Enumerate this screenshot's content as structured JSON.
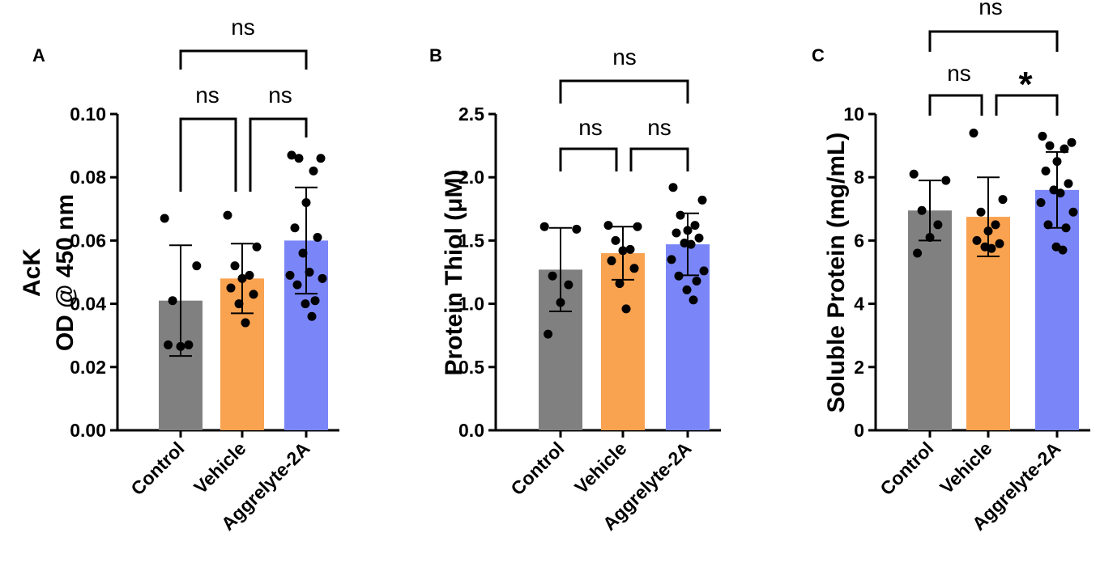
{
  "chart_data": [
    {
      "type": "bar",
      "panel": "A",
      "categories": [
        "Control",
        "Vehicle",
        "Aggrelyte-2A"
      ],
      "ylabel_lines": [
        "AcK",
        "OD @ 450 nm"
      ],
      "ylim": [
        0,
        0.1
      ],
      "yticks": [
        "0.00",
        "0.02",
        "0.04",
        "0.06",
        "0.08",
        "0.10"
      ],
      "values": [
        0.041,
        0.048,
        0.06
      ],
      "sd": [
        0.0175,
        0.011,
        0.0168
      ],
      "colors": [
        "#808080",
        "#f9a24f",
        "#7a86f8"
      ],
      "points": [
        [
          0.067,
          0.052,
          0.041,
          0.027,
          0.0265,
          0.027
        ],
        [
          0.068,
          0.058,
          0.052,
          0.049,
          0.048,
          0.045,
          0.043,
          0.04,
          0.034
        ],
        [
          0.087,
          0.086,
          0.086,
          0.082,
          0.072,
          0.064,
          0.061,
          0.056,
          0.05,
          0.049,
          0.048,
          0.046,
          0.041,
          0.04,
          0.036
        ]
      ],
      "comparisons": [
        {
          "from": 0,
          "to": 1,
          "label": "ns"
        },
        {
          "from": 1,
          "to": 2,
          "label": "ns"
        },
        {
          "from": 0,
          "to": 2,
          "label": "ns"
        }
      ]
    },
    {
      "type": "bar",
      "panel": "B",
      "categories": [
        "Control",
        "Vehicle",
        "Aggrelyte-2A"
      ],
      "ylabel": "Protein Thiol (μM)",
      "ylim": [
        0,
        2.5
      ],
      "yticks": [
        "0.0",
        "0.5",
        "1.0",
        "1.5",
        "2.0",
        "2.5"
      ],
      "values": [
        1.27,
        1.4,
        1.47
      ],
      "sd": [
        0.33,
        0.21,
        0.245
      ],
      "colors": [
        "#808080",
        "#f9a24f",
        "#7a86f8"
      ],
      "points": [
        [
          1.61,
          1.59,
          1.22,
          1.15,
          1.01,
          0.76
        ],
        [
          1.62,
          1.61,
          1.5,
          1.43,
          1.42,
          1.34,
          1.28,
          1.16,
          0.96
        ],
        [
          1.92,
          1.82,
          1.7,
          1.62,
          1.58,
          1.56,
          1.52,
          1.48,
          1.47,
          1.35,
          1.26,
          1.22,
          1.18,
          1.11,
          1.03
        ]
      ],
      "comparisons": [
        {
          "from": 0,
          "to": 1,
          "label": "ns"
        },
        {
          "from": 1,
          "to": 2,
          "label": "ns"
        },
        {
          "from": 0,
          "to": 2,
          "label": "ns"
        }
      ]
    },
    {
      "type": "bar",
      "panel": "C",
      "categories": [
        "Control",
        "Vehicle",
        "Aggrelyte-2A"
      ],
      "ylabel": "Soluble Protein (mg/mL)",
      "ylim": [
        0,
        10
      ],
      "yticks": [
        "0",
        "2",
        "4",
        "6",
        "8",
        "10"
      ],
      "values": [
        6.95,
        6.75,
        7.6
      ],
      "sd": [
        0.95,
        1.25,
        1.2
      ],
      "colors": [
        "#808080",
        "#f9a24f",
        "#7a86f8"
      ],
      "points": [
        [
          8.1,
          7.9,
          6.95,
          6.5,
          6.1,
          5.6
        ],
        [
          9.4,
          7.3,
          6.9,
          6.5,
          6.3,
          6.0,
          5.9,
          5.8,
          5.75
        ],
        [
          9.3,
          9.1,
          9.0,
          8.9,
          8.5,
          8.2,
          7.8,
          7.6,
          7.5,
          7.2,
          6.9,
          6.5,
          6.4,
          5.8,
          5.7
        ]
      ],
      "comparisons": [
        {
          "from": 0,
          "to": 1,
          "label": "ns"
        },
        {
          "from": 1,
          "to": 2,
          "label": "*"
        },
        {
          "from": 0,
          "to": 2,
          "label": "ns"
        }
      ]
    }
  ]
}
